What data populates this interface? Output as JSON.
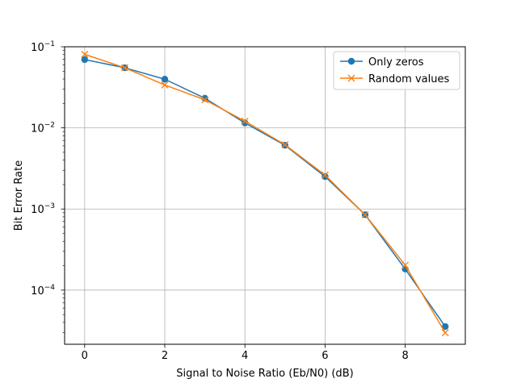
{
  "chart_data": {
    "type": "line",
    "xlabel": "Signal to Noise Ratio (Eb/N0) (dB)",
    "ylabel": "Bit Error Rate",
    "x_ticks": [
      0,
      2,
      4,
      6,
      8
    ],
    "y_ticks": [
      {
        "value": 0.0001,
        "base": "10",
        "exp": "−4"
      },
      {
        "value": 0.001,
        "base": "10",
        "exp": "−3"
      },
      {
        "value": 0.01,
        "base": "10",
        "exp": "−2"
      },
      {
        "value": 0.1,
        "base": "10",
        "exp": "−1"
      }
    ],
    "xlim": [
      -0.5,
      9.5
    ],
    "ylim": [
      2.15e-05,
      0.1
    ],
    "yscale": "log",
    "grid": true,
    "legend_position": "top-right",
    "x": [
      0,
      1,
      2,
      3,
      4,
      5,
      6,
      7,
      8,
      9
    ],
    "series": [
      {
        "name": "Only zeros",
        "color": "#1f77b4",
        "marker": "circle",
        "values": [
          0.0695,
          0.0551,
          0.0398,
          0.0232,
          0.0115,
          0.0061,
          0.00251,
          0.00085,
          0.000182,
          3.55e-05
        ]
      },
      {
        "name": "Random values",
        "color": "#ff7f0e",
        "marker": "x",
        "values": [
          0.0807,
          0.0551,
          0.0338,
          0.0222,
          0.0121,
          0.0062,
          0.00262,
          0.00085,
          0.000203,
          2.98e-05
        ]
      }
    ]
  }
}
